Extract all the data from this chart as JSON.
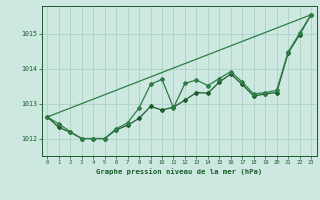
{
  "title": "Graphe pression niveau de la mer (hPa)",
  "background_color": "#cce8e0",
  "grid_color": "#aaccc0",
  "line_color_dark": "#1a5c2a",
  "line_color_mid": "#2e7d46",
  "line_color_light": "#3aaa5a",
  "xlim": [
    -0.5,
    23.5
  ],
  "ylim": [
    1011.5,
    1015.8
  ],
  "yticks": [
    1012,
    1013,
    1014,
    1015
  ],
  "xticks": [
    0,
    1,
    2,
    3,
    4,
    5,
    6,
    7,
    8,
    9,
    10,
    11,
    12,
    13,
    14,
    15,
    16,
    17,
    18,
    19,
    20,
    21,
    22,
    23
  ],
  "hours": [
    0,
    1,
    2,
    3,
    4,
    5,
    6,
    7,
    8,
    9,
    10,
    11,
    12,
    13,
    14,
    15,
    16,
    17,
    18,
    19,
    20,
    21,
    22,
    23
  ],
  "series_zigzag": [
    1012.62,
    1012.42,
    1012.2,
    1012.0,
    1012.0,
    1012.0,
    1012.28,
    1012.45,
    1012.88,
    1013.55,
    1013.7,
    1012.88,
    1013.58,
    1013.68,
    1013.52,
    1013.72,
    1013.92,
    1013.62,
    1013.28,
    1013.32,
    1013.38,
    1014.48,
    1015.02,
    1015.55
  ],
  "series_smooth": [
    1012.62,
    1012.32,
    1012.18,
    1012.0,
    1012.0,
    1012.0,
    1012.25,
    1012.38,
    1012.58,
    1012.92,
    1012.82,
    1012.9,
    1013.1,
    1013.32,
    1013.3,
    1013.62,
    1013.85,
    1013.55,
    1013.22,
    1013.28,
    1013.32,
    1014.45,
    1014.98,
    1015.55
  ],
  "trend_x": [
    0,
    23
  ],
  "trend_y": [
    1012.62,
    1015.55
  ]
}
